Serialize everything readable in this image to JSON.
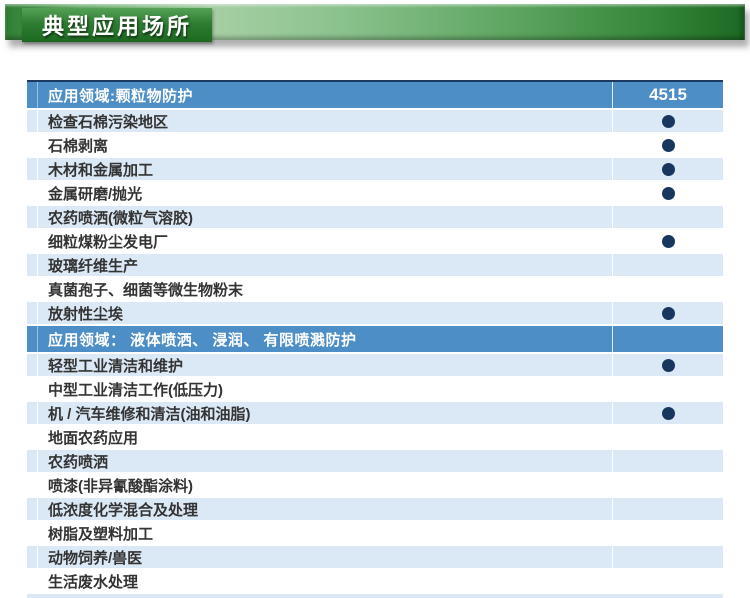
{
  "banner": {
    "title": "典型应用场所"
  },
  "table": {
    "product_code": "4515",
    "sections": [
      {
        "header": "应用领域:颗粒物防护",
        "rows": [
          {
            "label": "检查石棉污染地区",
            "dot": true
          },
          {
            "label": "石棉剥离",
            "dot": true
          },
          {
            "label": "木材和金属加工",
            "dot": true
          },
          {
            "label": "金属研磨/抛光",
            "dot": true
          },
          {
            "label": "农药喷洒(微粒气溶胶)",
            "dot": false
          },
          {
            "label": "细粒煤粉尘发电厂",
            "dot": true
          },
          {
            "label": "玻璃纤维生产",
            "dot": false
          },
          {
            "label": "真菌孢子、细菌等微生物粉末",
            "dot": false
          },
          {
            "label": "放射性尘埃",
            "dot": true
          }
        ]
      },
      {
        "header": "应用领域： 液体喷洒、 浸润、 有限喷溅防护",
        "rows": [
          {
            "label": "轻型工业清洁和维护",
            "dot": true
          },
          {
            "label": "中型工业清洁工作(低压力)",
            "dot": false
          },
          {
            "label": "机 / 汽车维修和清洁(油和油脂)",
            "dot": true
          },
          {
            "label": "地面农药应用",
            "dot": false
          },
          {
            "label": "农药喷洒",
            "dot": false
          },
          {
            "label": "喷漆(非异氰酸酯涂料)",
            "dot": false
          },
          {
            "label": "低浓度化学混合及处理",
            "dot": false
          },
          {
            "label": "树脂及塑料加工",
            "dot": false
          },
          {
            "label": "动物饲养/兽医",
            "dot": false
          },
          {
            "label": "生活废水处理",
            "dot": false
          }
        ]
      }
    ]
  },
  "colors": {
    "header-bg": "#4c8ec5",
    "header-border": "#1c3a60",
    "row-alt": "#dbe8f5",
    "dot": "#17375e",
    "row-text": "#333333",
    "banner-dark": "#1f6b24",
    "banner-light": "#a6cfa4",
    "title-box-top": "#55a257",
    "title-box-bottom": "#1d6921"
  }
}
